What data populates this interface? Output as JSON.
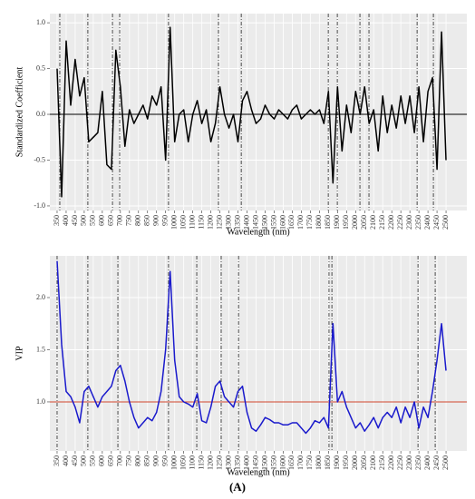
{
  "chart_data": [
    {
      "type": "line",
      "ylabel": "Standardized Coefficient",
      "xlabel": "Wavelength (nm)",
      "xlim": [
        310,
        2615
      ],
      "ylim": [
        -1.05,
        1.1
      ],
      "xticks": [
        350,
        400,
        450,
        500,
        550,
        600,
        650,
        700,
        750,
        800,
        850,
        900,
        950,
        1000,
        1050,
        1100,
        1150,
        1200,
        1250,
        1300,
        1350,
        1400,
        1450,
        1500,
        1550,
        1600,
        1650,
        1700,
        1750,
        1800,
        1850,
        1900,
        1950,
        2000,
        2050,
        2100,
        2150,
        2200,
        2250,
        2300,
        2350,
        2400,
        2450,
        2500
      ],
      "yticks": [
        {
          "value": 1,
          "label": "1.0"
        },
        {
          "value": 0.5,
          "label": "0.5"
        },
        {
          "value": 0,
          "label": "0.0"
        },
        {
          "value": -0.5,
          "label": "-0.5"
        },
        {
          "value": -1,
          "label": "-1.0"
        }
      ],
      "hline": 0,
      "hline_color": "#000000",
      "vlines": [
        365,
        520,
        656,
        696,
        966,
        1242,
        1368,
        1849,
        1899,
        2024,
        2074,
        2340,
        2430
      ],
      "grid": true,
      "x": [
        350,
        375,
        400,
        425,
        450,
        475,
        500,
        525,
        550,
        575,
        600,
        625,
        650,
        675,
        700,
        725,
        750,
        775,
        800,
        825,
        850,
        875,
        900,
        925,
        950,
        975,
        1000,
        1025,
        1050,
        1075,
        1100,
        1125,
        1150,
        1175,
        1200,
        1225,
        1250,
        1275,
        1300,
        1325,
        1350,
        1375,
        1400,
        1425,
        1450,
        1475,
        1500,
        1525,
        1550,
        1575,
        1600,
        1625,
        1650,
        1675,
        1700,
        1725,
        1750,
        1775,
        1800,
        1825,
        1850,
        1875,
        1900,
        1925,
        1950,
        1975,
        2000,
        2025,
        2050,
        2075,
        2100,
        2125,
        2150,
        2175,
        2200,
        2225,
        2250,
        2275,
        2300,
        2325,
        2350,
        2375,
        2400,
        2425,
        2450,
        2475,
        2500
      ],
      "series": [
        {
          "color": "#000000",
          "values": [
            0.5,
            -0.9,
            0.8,
            0.1,
            0.6,
            0.2,
            0.4,
            -0.3,
            -0.25,
            -0.2,
            0.25,
            -0.55,
            -0.6,
            0.7,
            0.3,
            -0.35,
            0.05,
            -0.1,
            0.0,
            0.1,
            -0.05,
            0.2,
            0.1,
            0.3,
            -0.5,
            0.95,
            -0.3,
            0.0,
            0.05,
            -0.3,
            0.0,
            0.15,
            -0.1,
            0.05,
            -0.3,
            -0.1,
            0.3,
            0.0,
            -0.15,
            0.0,
            -0.3,
            0.15,
            0.25,
            0.05,
            -0.1,
            -0.05,
            0.1,
            0.0,
            -0.05,
            0.05,
            0.0,
            -0.05,
            0.05,
            0.1,
            -0.05,
            0.0,
            0.05,
            0.0,
            0.05,
            -0.1,
            0.25,
            -0.75,
            0.3,
            -0.4,
            0.1,
            -0.2,
            0.25,
            0.0,
            0.3,
            -0.1,
            0.05,
            -0.4,
            0.2,
            -0.2,
            0.1,
            -0.15,
            0.2,
            -0.1,
            0.2,
            -0.2,
            0.3,
            -0.3,
            0.25,
            0.4,
            -0.6,
            0.9,
            -0.5
          ]
        }
      ]
    },
    {
      "type": "line",
      "ylabel": "VIP",
      "xlabel": "Wavelength (nm)",
      "xlim": [
        310,
        2615
      ],
      "ylim": [
        0.53,
        2.4
      ],
      "xticks": [
        350,
        400,
        450,
        500,
        550,
        600,
        650,
        700,
        750,
        800,
        850,
        900,
        950,
        1000,
        1050,
        1100,
        1150,
        1200,
        1250,
        1300,
        1350,
        1400,
        1450,
        1500,
        1550,
        1600,
        1650,
        1700,
        1750,
        1800,
        1850,
        1900,
        1950,
        2000,
        2050,
        2100,
        2150,
        2200,
        2250,
        2300,
        2350,
        2400,
        2450,
        2500
      ],
      "yticks": [
        {
          "value": 1,
          "label": "1.0"
        },
        {
          "value": 1.5,
          "label": "1.5"
        },
        {
          "value": 2,
          "label": "2.0"
        }
      ],
      "hline": 1,
      "hline_color": "#d0442c",
      "vlines": [
        350,
        520,
        686,
        966,
        1122,
        1257,
        1353,
        1853,
        1869,
        2345,
        2440
      ],
      "grid": true,
      "x": [
        350,
        375,
        400,
        425,
        450,
        475,
        500,
        525,
        550,
        575,
        600,
        625,
        650,
        675,
        700,
        725,
        750,
        775,
        800,
        825,
        850,
        875,
        900,
        925,
        950,
        975,
        1000,
        1025,
        1050,
        1075,
        1100,
        1125,
        1150,
        1175,
        1200,
        1225,
        1250,
        1275,
        1300,
        1325,
        1350,
        1375,
        1400,
        1425,
        1450,
        1475,
        1500,
        1525,
        1550,
        1575,
        1600,
        1625,
        1650,
        1675,
        1700,
        1725,
        1750,
        1775,
        1800,
        1825,
        1850,
        1875,
        1900,
        1925,
        1950,
        1975,
        2000,
        2025,
        2050,
        2075,
        2100,
        2125,
        2150,
        2175,
        2200,
        2225,
        2250,
        2275,
        2300,
        2325,
        2350,
        2375,
        2400,
        2425,
        2450,
        2475,
        2500
      ],
      "series": [
        {
          "color": "#1a1acc",
          "values": [
            2.35,
            1.55,
            1.1,
            1.05,
            0.95,
            0.8,
            1.1,
            1.15,
            1.05,
            0.95,
            1.05,
            1.1,
            1.15,
            1.3,
            1.35,
            1.2,
            1.0,
            0.85,
            0.75,
            0.8,
            0.85,
            0.82,
            0.9,
            1.1,
            1.5,
            2.25,
            1.4,
            1.05,
            1.0,
            0.98,
            0.95,
            1.08,
            0.82,
            0.8,
            0.95,
            1.15,
            1.2,
            1.05,
            1.0,
            0.95,
            1.1,
            1.15,
            0.9,
            0.75,
            0.72,
            0.78,
            0.85,
            0.83,
            0.8,
            0.8,
            0.78,
            0.78,
            0.8,
            0.8,
            0.75,
            0.7,
            0.75,
            0.82,
            0.8,
            0.85,
            0.75,
            1.75,
            1.0,
            1.1,
            0.95,
            0.85,
            0.75,
            0.8,
            0.72,
            0.78,
            0.85,
            0.75,
            0.85,
            0.9,
            0.85,
            0.95,
            0.8,
            0.95,
            0.85,
            1.0,
            0.75,
            0.95,
            0.85,
            1.1,
            1.4,
            1.75,
            1.3
          ]
        }
      ]
    }
  ],
  "caption": "(A)"
}
